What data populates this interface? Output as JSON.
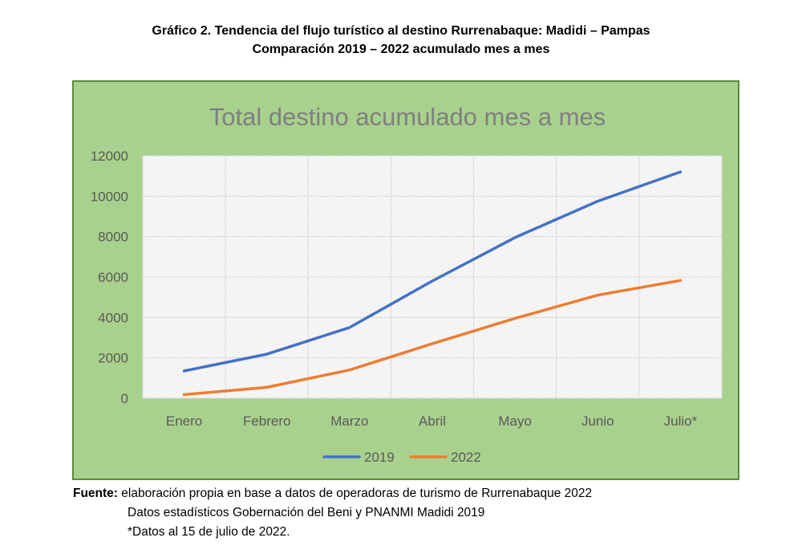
{
  "caption": {
    "line1": "Gráfico 2. Tendencia del flujo turístico al destino Rurrenabaque: Madidi – Pampas",
    "line2": "Comparación 2019 – 2022 acumulado mes a mes"
  },
  "chart_data": {
    "type": "line",
    "title": "Total destino acumulado mes a mes",
    "categories": [
      "Enero",
      "Febrero",
      "Marzo",
      "Abril",
      "Mayo",
      "Junio",
      "Julio*"
    ],
    "series": [
      {
        "name": "2019",
        "color": "#4472c4",
        "values": [
          1350,
          2180,
          3500,
          5800,
          7950,
          9750,
          11200
        ]
      },
      {
        "name": "2022",
        "color": "#ed7d31",
        "values": [
          180,
          540,
          1400,
          2700,
          3950,
          5100,
          5830
        ]
      }
    ],
    "ylim": [
      0,
      12000
    ],
    "yticks": [
      0,
      2000,
      4000,
      6000,
      8000,
      10000,
      12000
    ],
    "grid": true,
    "legend": "bottom",
    "xlabel": "",
    "ylabel": ""
  },
  "source": {
    "label": "Fuente:",
    "line1": "elaboración propia en base a datos de operadoras de turismo de Rurrenabaque 2022",
    "line2": "Datos estadísticos Gobernación del Beni y PNANMI Madidi 2019",
    "line3": "*Datos al 15 de julio de 2022."
  }
}
